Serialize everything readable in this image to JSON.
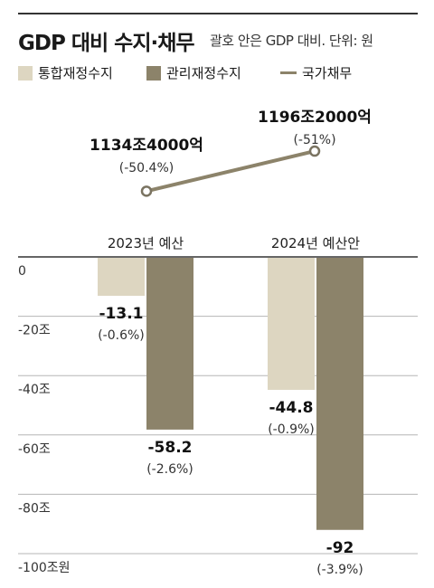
{
  "header": {
    "title": "GDP 대비 수지·채무",
    "subtitle": "괄호 안은 GDP 대비. 단위: 원"
  },
  "legend": [
    {
      "label": "통합재정수지",
      "color": "#ddd6c1",
      "kind": "swatch"
    },
    {
      "label": "관리재정수지",
      "color": "#8c836a",
      "kind": "swatch"
    },
    {
      "label": "국가채무",
      "color": "#8c836a",
      "kind": "line"
    }
  ],
  "chart_data": {
    "type": "bar",
    "title": "GDP 대비 수지·채무",
    "subtitle": "괄호 안은 GDP 대비. 단위: 원",
    "categories": [
      "2023년 예산",
      "2024년 예산안"
    ],
    "series": [
      {
        "name": "통합재정수지",
        "color": "#ddd6c1",
        "values": [
          -13.1,
          -44.8
        ],
        "labels": [
          "-13.1",
          "-44.8"
        ],
        "pct": [
          "(-0.6%)",
          "(-0.9%)"
        ]
      },
      {
        "name": "관리재정수지",
        "color": "#8c836a",
        "values": [
          -58.2,
          -92
        ],
        "labels": [
          "-58.2",
          "-92"
        ],
        "pct": [
          "(-2.6%)",
          "(-3.9%)"
        ]
      }
    ],
    "debt": {
      "name": "국가채무",
      "color": "#8c836a",
      "values": [
        1134.4,
        1196.2
      ],
      "labels": [
        "1134조4000억",
        "1196조2000억"
      ],
      "pct": [
        "(-50.4%)",
        "(-51%)"
      ]
    },
    "y_ticks": [
      {
        "value": 0,
        "label": "0"
      },
      {
        "value": -20,
        "label": "-20조"
      },
      {
        "value": -40,
        "label": "-40조"
      },
      {
        "value": -60,
        "label": "-60조"
      },
      {
        "value": -80,
        "label": "-80조"
      },
      {
        "value": -100,
        "label": "-100조원"
      }
    ],
    "ylim": [
      -100,
      0
    ],
    "grid": true
  }
}
